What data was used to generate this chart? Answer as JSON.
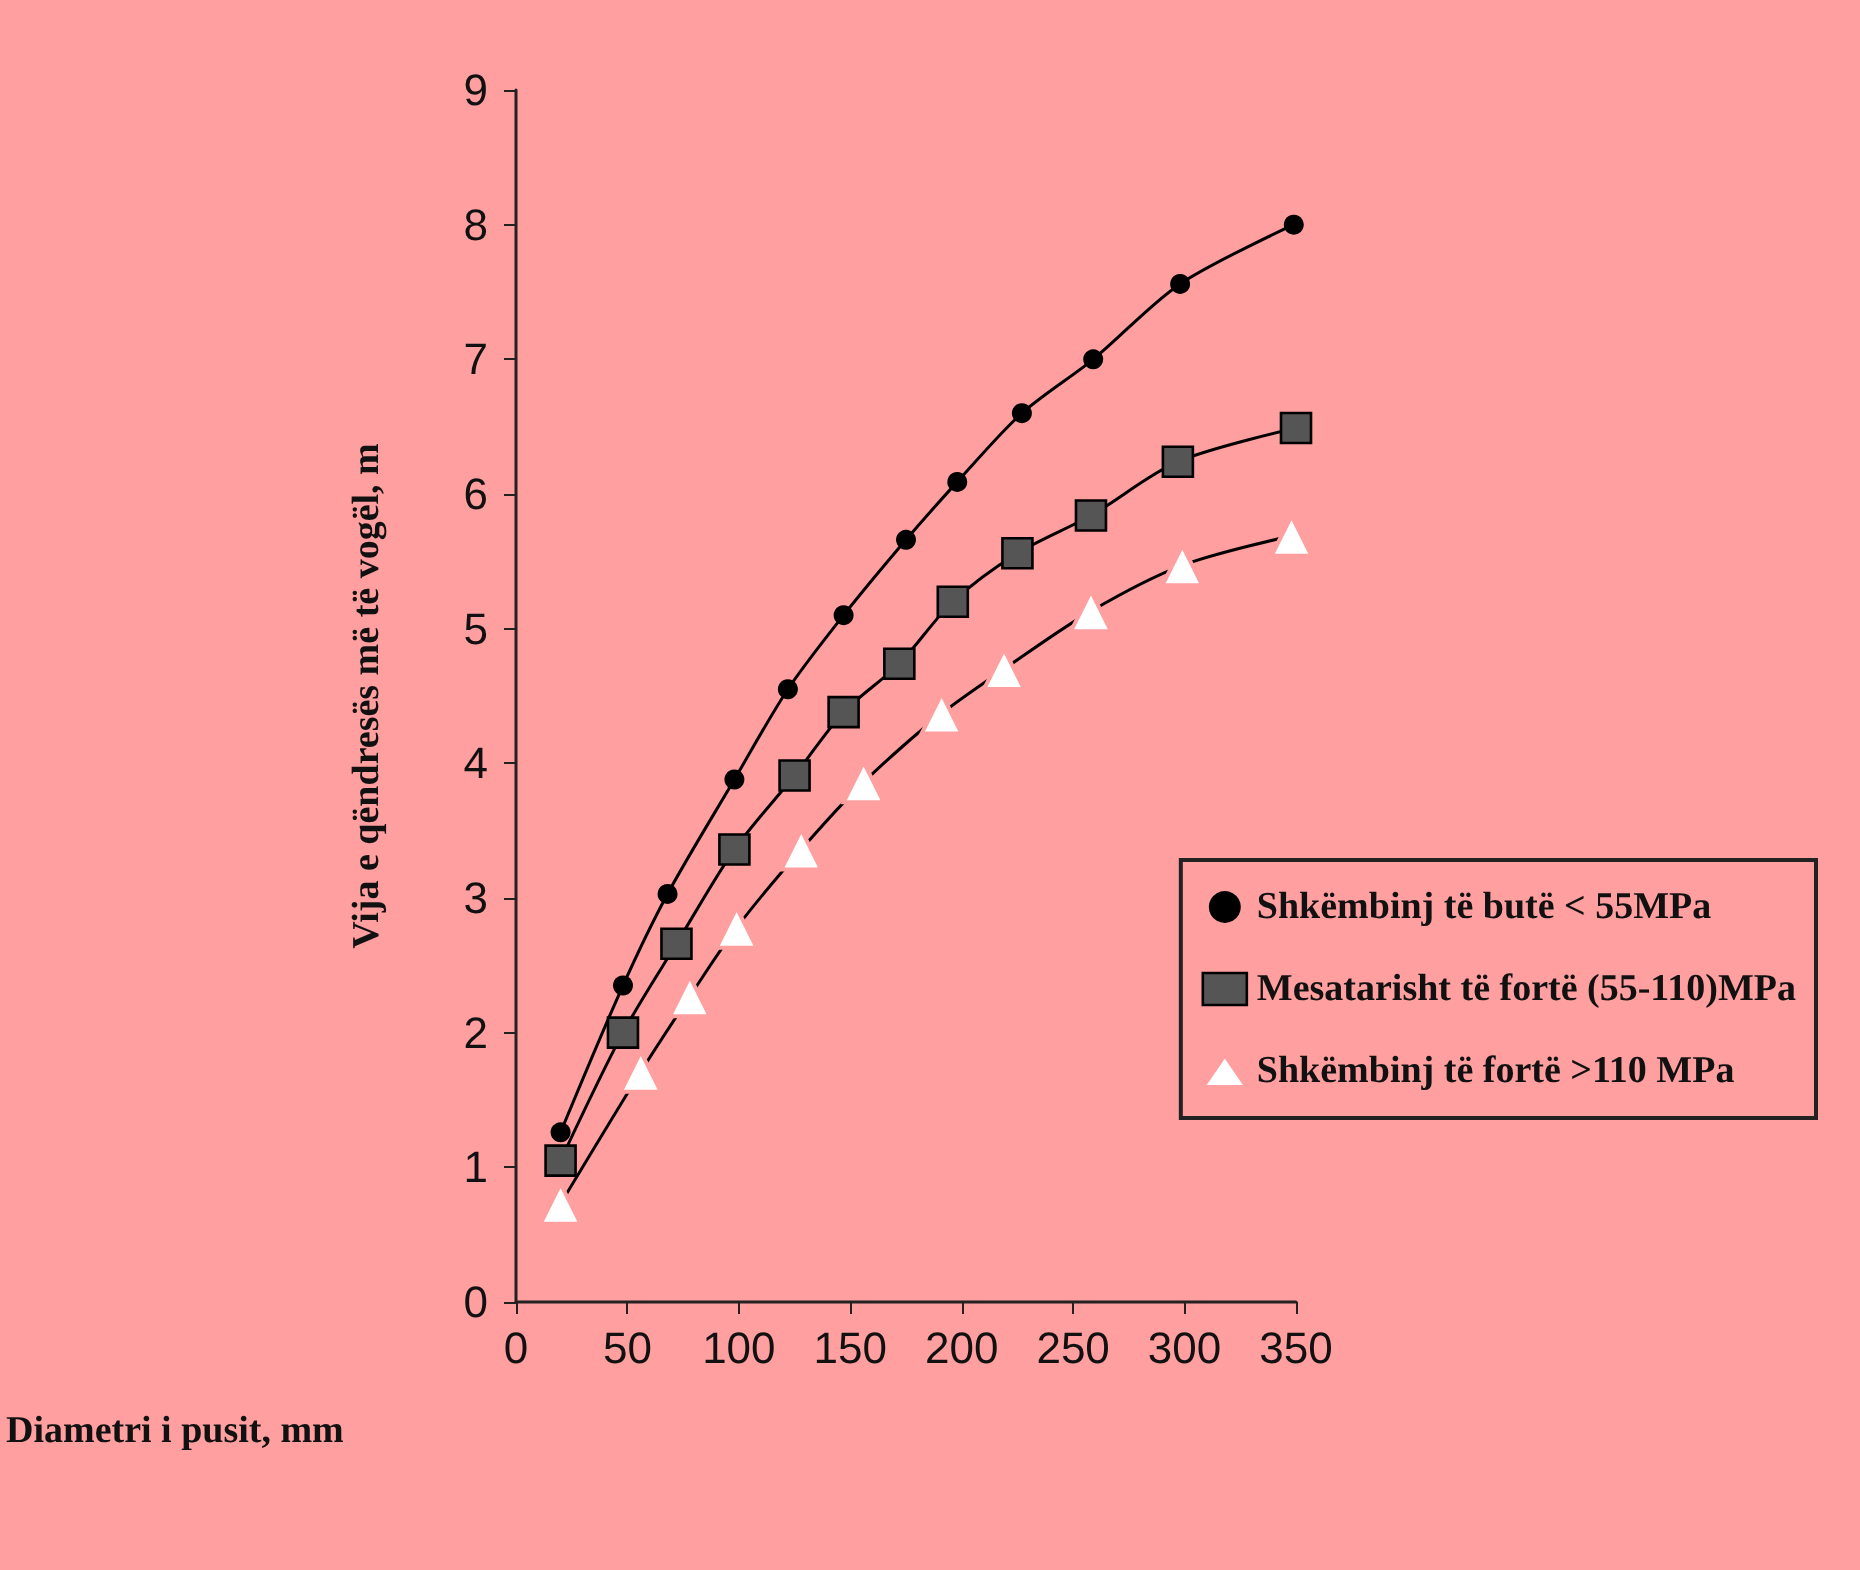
{
  "chart_data": {
    "type": "line",
    "xlabel": "Diametri i pusit, mm",
    "ylabel": "Vija e qëndresës më të vogël, m",
    "xlim": [
      0,
      350
    ],
    "xticks": [
      0,
      50,
      100,
      150,
      200,
      250,
      300,
      350
    ],
    "ylim": [
      0,
      9
    ],
    "yticks": [
      0,
      1,
      2,
      3,
      4,
      5,
      6,
      7,
      8,
      9
    ],
    "grid": false,
    "legend": "right",
    "line_style": "solid",
    "series": [
      {
        "name": "Shkëmbinj të butë < 55MPa",
        "color": "#000000",
        "marker": "circle",
        "x": [
          20,
          48,
          68,
          98,
          122,
          147,
          175,
          198,
          227,
          259,
          298,
          349
        ],
        "values": [
          1.26,
          2.35,
          3.03,
          3.88,
          4.55,
          5.1,
          5.66,
          6.09,
          6.6,
          7.0,
          7.56,
          8.0
        ]
      },
      {
        "name": "Mesatarisht të fortë (55-110)MPa",
        "color": "#000000",
        "marker": "square",
        "x": [
          20,
          48,
          72,
          98,
          125,
          147,
          172,
          196,
          225,
          258,
          297,
          350
        ],
        "values": [
          1.05,
          2.0,
          2.66,
          3.36,
          3.91,
          4.38,
          4.74,
          5.2,
          5.56,
          5.84,
          6.24,
          6.49
        ]
      },
      {
        "name": "Shkëmbinj të fortë >110 MPa",
        "color": "#000000",
        "marker": "triangle",
        "x": [
          20,
          56,
          78,
          99,
          128,
          156,
          191,
          219,
          258,
          299,
          348
        ],
        "values": [
          0.73,
          1.71,
          2.27,
          2.78,
          3.36,
          3.86,
          4.37,
          4.7,
          5.13,
          5.47,
          5.69
        ]
      }
    ]
  }
}
